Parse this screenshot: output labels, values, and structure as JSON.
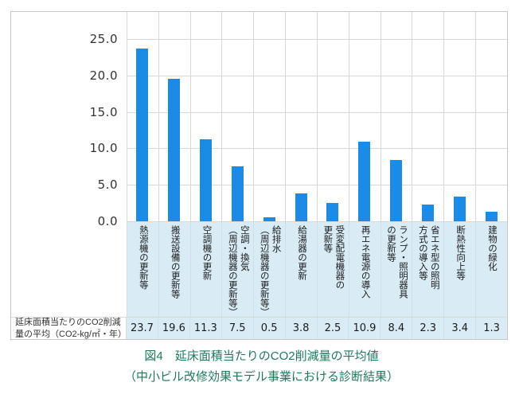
{
  "chart_data": {
    "type": "bar",
    "title": "図4　延床面積当たりのCO2削減量の平均値",
    "subtitle": "（中小ビル改修効果モデル事業における診断結果）",
    "categories": [
      "熱源機の更新等",
      "搬送設備の更新等",
      "空調機の更新",
      "空調・換気\n（周辺機器の更新等）",
      "給排水\n（周辺機器の更新等）",
      "給湯器の更新",
      "受変配電機器の\n更新等",
      "再エネ電源の導入",
      "ランプ・照明器具\nの更新等",
      "省エネ型の照明\n方式の導入等",
      "断熱性向上等",
      "建物の緑化"
    ],
    "values": [
      23.7,
      19.6,
      11.3,
      7.5,
      0.5,
      3.8,
      2.5,
      10.9,
      8.4,
      2.3,
      3.4,
      1.3
    ],
    "xlabel": "",
    "ylabel": "延床面積当たりのCO2削減量の平均（CO2-kg/㎡・年）",
    "ylim": [
      0,
      25
    ],
    "yticks": [
      "25.0",
      "20.0",
      "15.0",
      "10.0",
      "5.0",
      "0.0"
    ],
    "grid": true,
    "legend": false
  },
  "table": {
    "header": "延床面積当たりのCO2削減\n量の平均（CO2-kg/㎡・年）",
    "values": [
      "23.7",
      "19.6",
      "11.3",
      "7.5",
      "0.5",
      "3.8",
      "2.5",
      "10.9",
      "8.4",
      "2.3",
      "3.4",
      "1.3"
    ]
  },
  "caption": {
    "line1": "図4　延床面積当たりのCO2削減量の平均値",
    "line2": "（中小ビル改修効果モデル事業における診断結果）"
  },
  "colors": {
    "bar": "#1a8ce8",
    "panel_bg": "#d9ecf6",
    "grid": "#d8d8d8",
    "separator": "#cfdfe9",
    "border": "#c6c6c6",
    "caption_text": "#1e7a5e"
  }
}
